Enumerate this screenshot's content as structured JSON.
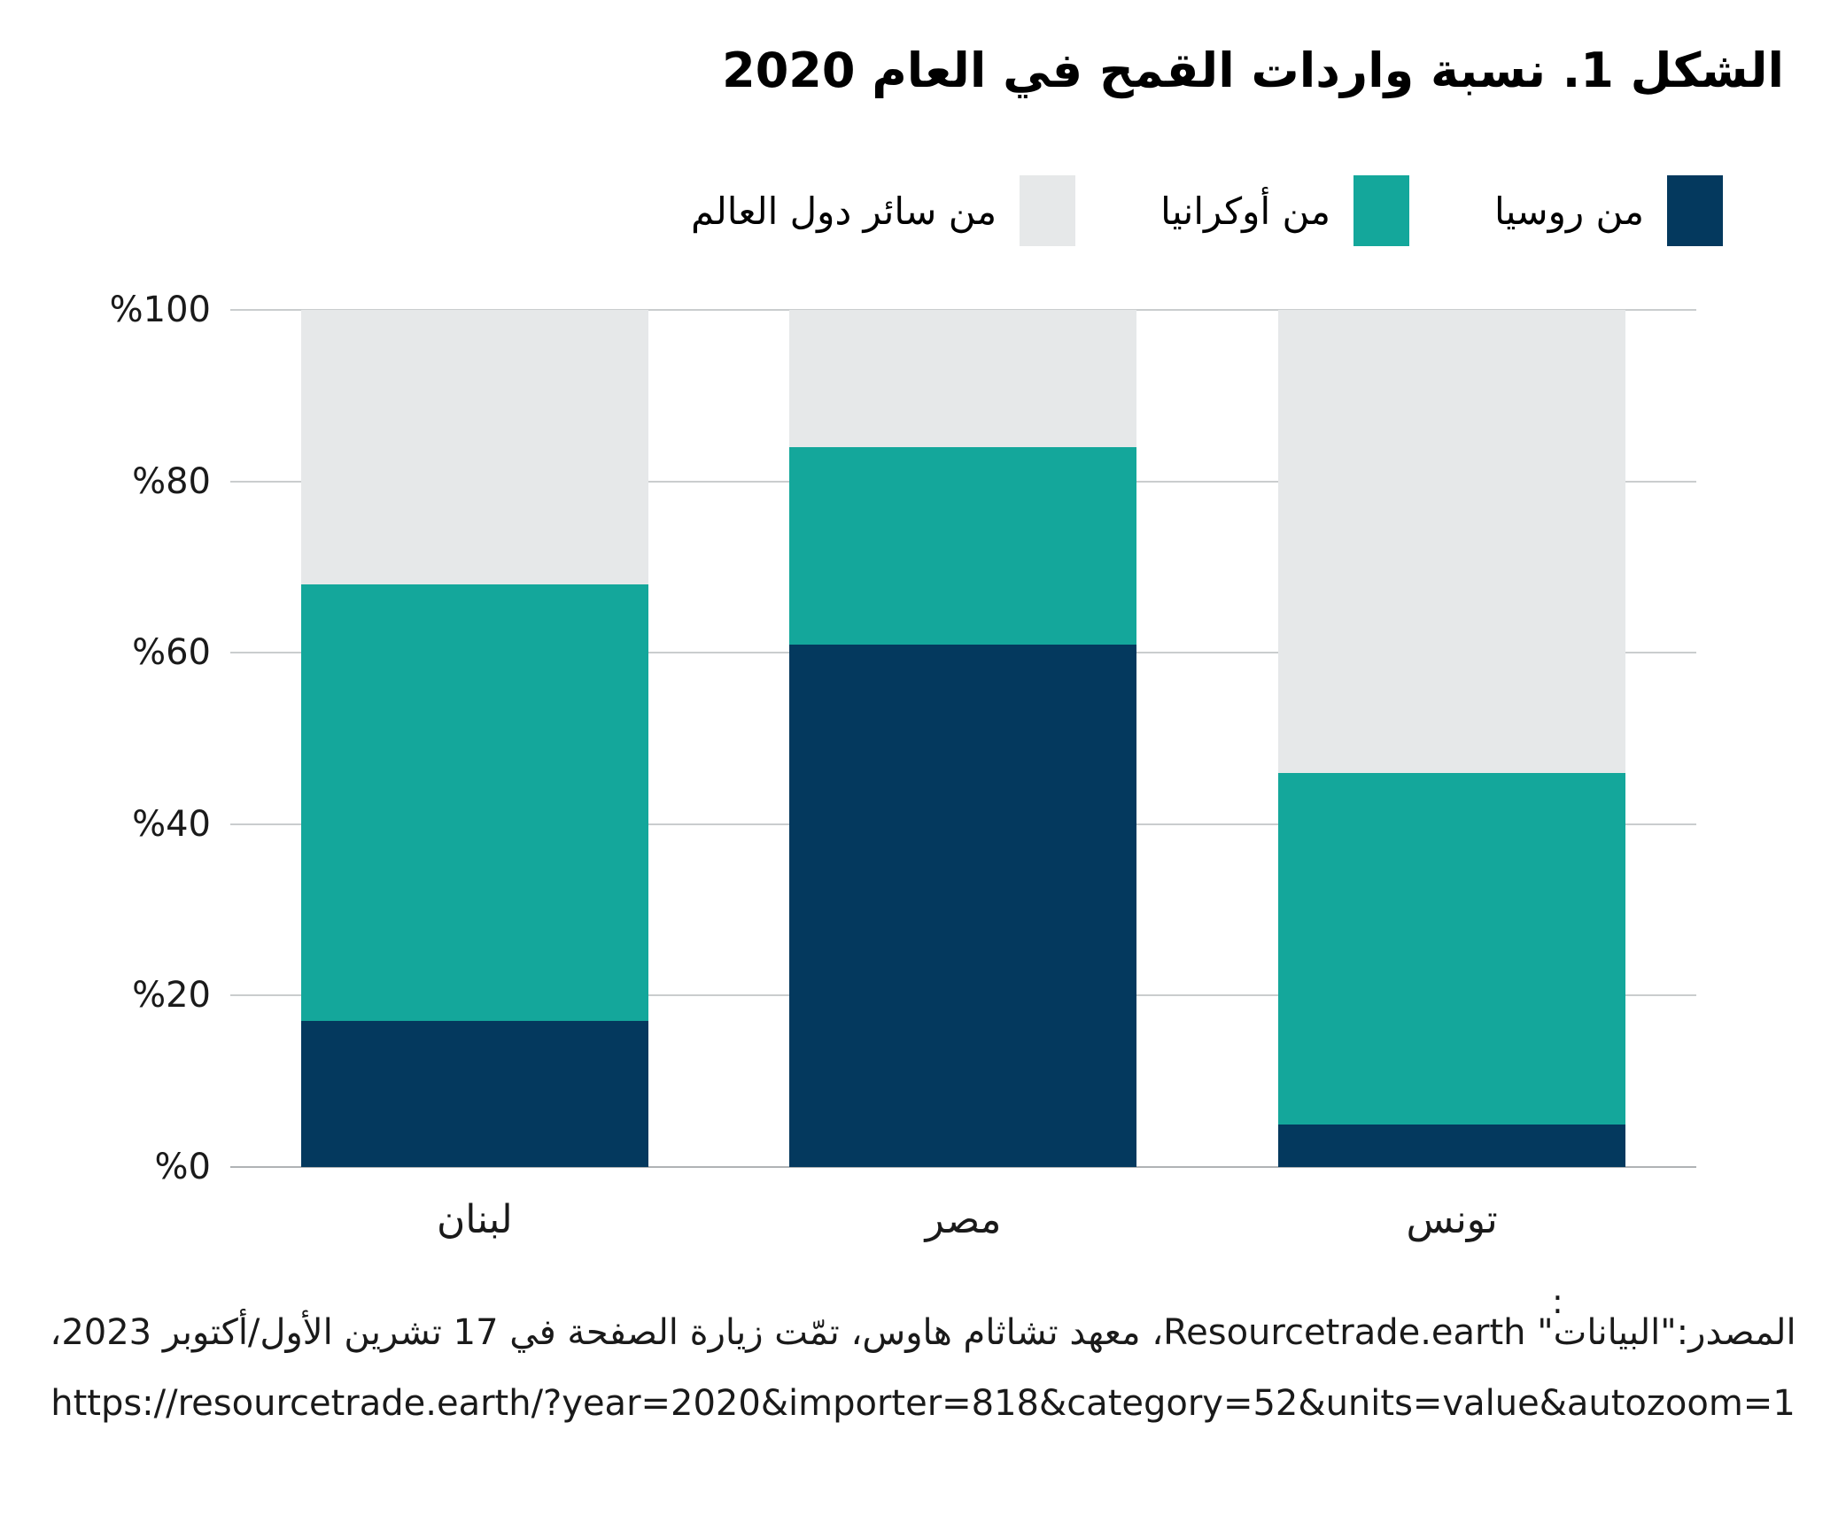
{
  "title": "الشكل 1. نسبة واردات القمح في العام 2020",
  "legend": [
    {
      "key": "russia",
      "label": "من روسيا",
      "color": "#04395e"
    },
    {
      "key": "ukraine",
      "label": "من أوكرانيا",
      "color": "#14a79b"
    },
    {
      "key": "rest",
      "label": "من سائر دول العالم",
      "color": "#e6e8e9"
    }
  ],
  "chart_data": {
    "type": "bar",
    "stacked": true,
    "title": "الشكل 1. نسبة واردات القمح في العام 2020",
    "categories": [
      "لبنان",
      "مصر",
      "تونس"
    ],
    "series": [
      {
        "name": "من روسيا",
        "color": "#04395e",
        "values": [
          17,
          61,
          5
        ]
      },
      {
        "name": "من أوكرانيا",
        "color": "#14a79b",
        "values": [
          51,
          23,
          41
        ]
      },
      {
        "name": "من سائر دول العالم",
        "color": "#e6e8e9",
        "values": [
          32,
          16,
          54
        ]
      }
    ],
    "xlabel": "",
    "ylabel": "",
    "ylim": [
      0,
      100
    ],
    "ytick_values": [
      0,
      20,
      40,
      60,
      80,
      100
    ],
    "ytick_labels": [
      "%0",
      "%20",
      "%40",
      "%60",
      "%80",
      "%100"
    ],
    "grid": true,
    "legend_position": "top-right",
    "gridline_color": "#cacdce",
    "baseline_color": "#b0b3b5"
  },
  "footer": {
    "stray_colon": ":",
    "source_line": "المصدر:\"البيانات\" Resourcetrade.earth، معهد تشاثام هاوس، تمّت زيارة الصفحة في 17 تشرين الأول/أكتوبر 2023،",
    "url_line": "https://resourcetrade.earth/?year=2020&importer=818&category=52&units=value&autozoom=1"
  }
}
